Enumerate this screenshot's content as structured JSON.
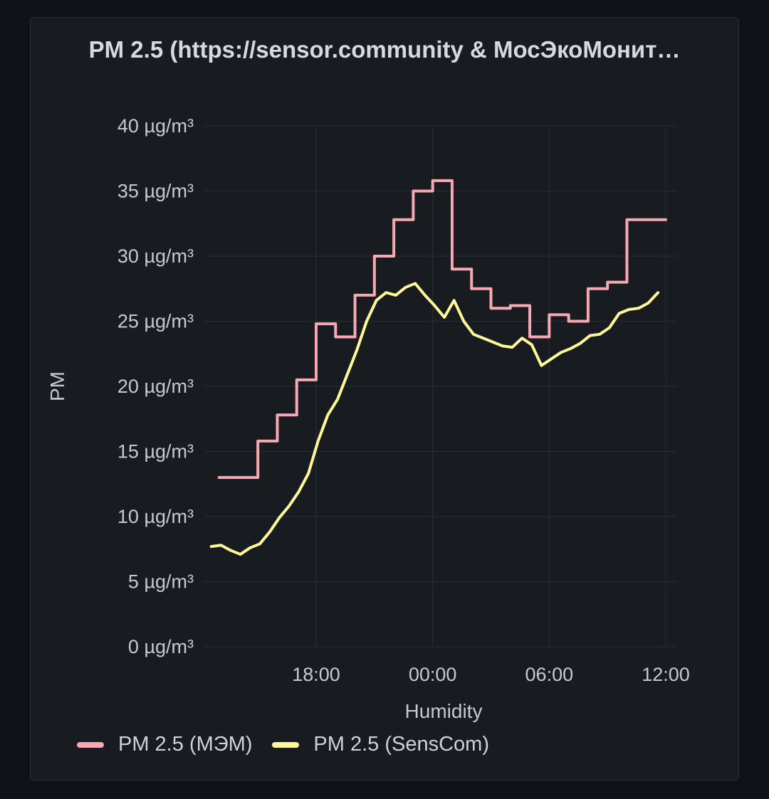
{
  "panel": {
    "title": "PM 2.5 (https://sensor.community & МосЭкоМонит…"
  },
  "legend": [
    {
      "label": "PM 2.5 (МЭМ)",
      "color": "#f7a9b3"
    },
    {
      "label": "PM 2.5 (SensCom)",
      "color": "#fff899"
    }
  ],
  "chart_data": {
    "type": "line",
    "title": "PM 2.5 (https://sensor.community & МосЭкоМонит…",
    "xlabel": "Humidity",
    "ylabel": "PM",
    "x_unit": "hours since 18:00 (first day); negative = before",
    "xlim": [
      -5.9,
      18.1
    ],
    "ylim": [
      0,
      40
    ],
    "y_ticks": [
      0,
      5,
      10,
      15,
      20,
      25,
      30,
      35,
      40
    ],
    "y_tick_labels": [
      "0 µg/m³",
      "5 µg/m³",
      "10 µg/m³",
      "15 µg/m³",
      "20 µg/m³",
      "25 µg/m³",
      "30 µg/m³",
      "35 µg/m³",
      "40 µg/m³"
    ],
    "x_ticks": [
      0,
      6,
      12,
      18
    ],
    "x_tick_labels": [
      "18:00",
      "00:00",
      "06:00",
      "12:00"
    ],
    "grid": true,
    "legend_position": "bottom-left",
    "series": [
      {
        "name": "PM 2.5 (МЭМ)",
        "color": "#f7a9b3",
        "step": true,
        "x": [
          -5.0,
          -3.0,
          -2.0,
          -1.0,
          0.0,
          1.0,
          2.0,
          3.0,
          4.0,
          5.0,
          6.0,
          7.0,
          8.0,
          9.0,
          10.0,
          11.0,
          12.0,
          13.0,
          14.0,
          15.0,
          16.0,
          17.0
        ],
        "values": [
          13.0,
          15.8,
          17.8,
          20.5,
          24.8,
          23.8,
          27.0,
          30.0,
          32.8,
          35.0,
          35.8,
          29.0,
          27.5,
          26.0,
          26.2,
          23.8,
          25.5,
          25.0,
          27.5,
          28.0,
          32.8,
          32.8
        ]
      },
      {
        "name": "PM 2.5 (SensCom)",
        "color": "#fff899",
        "step": false,
        "x": [
          -5.4,
          -4.9,
          -4.4,
          -3.9,
          -3.4,
          -2.9,
          -2.4,
          -1.9,
          -1.4,
          -0.9,
          -0.4,
          0.1,
          0.6,
          1.1,
          1.6,
          2.1,
          2.6,
          3.1,
          3.6,
          4.1,
          4.6,
          5.1,
          5.6,
          6.1,
          6.6,
          7.1,
          7.6,
          8.1,
          8.6,
          9.1,
          9.6,
          10.1,
          10.6,
          11.1,
          11.6,
          12.1,
          12.6,
          13.1,
          13.6,
          14.1,
          14.6,
          15.1,
          15.6,
          16.1,
          16.6,
          17.1,
          17.6
        ],
        "values": [
          7.7,
          7.8,
          7.4,
          7.1,
          7.6,
          7.9,
          8.8,
          9.9,
          10.8,
          11.9,
          13.3,
          15.8,
          17.8,
          19.0,
          20.9,
          22.8,
          25.0,
          26.6,
          27.2,
          27.0,
          27.6,
          27.9,
          27.0,
          26.2,
          25.3,
          26.6,
          25.0,
          24.0,
          23.7,
          23.4,
          23.1,
          23.0,
          23.7,
          23.2,
          21.6,
          22.1,
          22.6,
          22.9,
          23.3,
          23.9,
          24.0,
          24.5,
          25.6,
          25.9,
          26.0,
          26.4,
          27.2
        ]
      }
    ]
  }
}
